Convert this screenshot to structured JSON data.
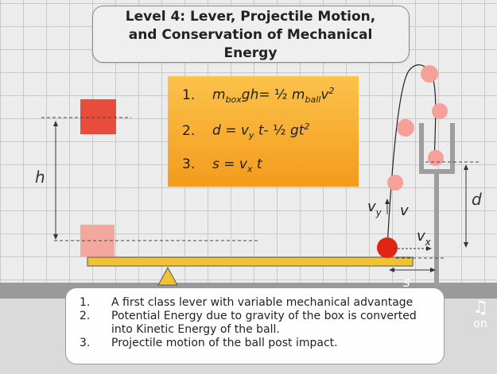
{
  "level": {
    "title": "Level 4: Lever, Projectile Motion,\nand Conservation of Mechanical\nEnergy"
  },
  "equations": [
    {
      "number": "1.",
      "text": "m_box·g·h = ½ m_ball·v²"
    },
    {
      "number": "2.",
      "text": "d = v_y·t - ½ g·t²"
    },
    {
      "number": "3.",
      "text": "s = v_x·t"
    }
  ],
  "diagram_labels": {
    "height": "h",
    "distance_vertical": "d",
    "distance_horizontal": "s",
    "velocity_y": "v",
    "velocity_y_sub": "y",
    "velocity": "v",
    "velocity_x": "v",
    "velocity_x_sub": "x"
  },
  "description": {
    "items": [
      {
        "number": "1.",
        "text": "A first class lever with variable mechanical advantage"
      },
      {
        "number": "2.",
        "text": "Potential Energy due to gravity of the box is converted into Kinetic Energy of the ball."
      },
      {
        "number": "3.",
        "text": "Projectile motion of the ball post impact."
      }
    ]
  },
  "sound_toggle": {
    "icon": "music-note-icon",
    "label": "on"
  },
  "colors": {
    "box": "#e74c3c",
    "box_faded": "#f4a79c",
    "ball": "#e02515",
    "ball_faded": "#f6a09a",
    "lever": "#f1c232",
    "equation_panel": "#f7a72c",
    "pole": "#9e9e9e"
  }
}
